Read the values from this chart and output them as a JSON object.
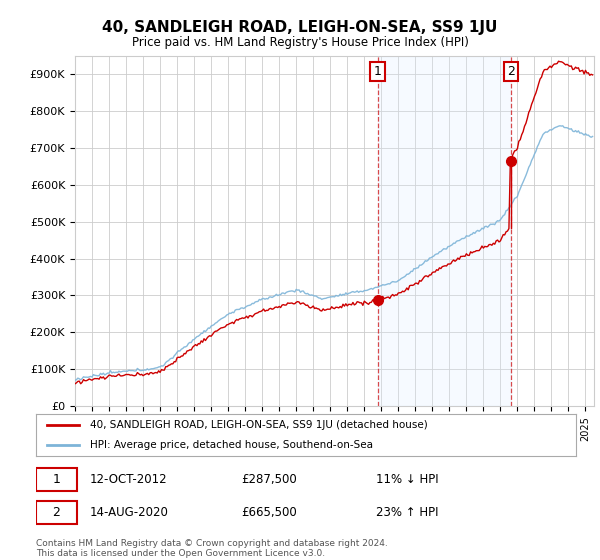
{
  "title": "40, SANDLEIGH ROAD, LEIGH-ON-SEA, SS9 1JU",
  "subtitle": "Price paid vs. HM Land Registry's House Price Index (HPI)",
  "ylabel_ticks": [
    "£0",
    "£100K",
    "£200K",
    "£300K",
    "£400K",
    "£500K",
    "£600K",
    "£700K",
    "£800K",
    "£900K"
  ],
  "ytick_values": [
    0,
    100000,
    200000,
    300000,
    400000,
    500000,
    600000,
    700000,
    800000,
    900000
  ],
  "ylim": [
    0,
    950000
  ],
  "xlim_start": 1995.0,
  "xlim_end": 2025.5,
  "sale1_year": 2012,
  "sale1_month": 10,
  "sale1_date": 2012.78,
  "sale1_price": 287500,
  "sale1_label": "1",
  "sale2_year": 2020,
  "sale2_month": 8,
  "sale2_date": 2020.62,
  "sale2_price": 665500,
  "sale2_label": "2",
  "red_line_color": "#cc0000",
  "blue_line_color": "#7db4d8",
  "shade_color": "#ddeeff",
  "annotation_box_color": "#cc0000",
  "grid_color": "#cccccc",
  "bg_color": "#ffffff",
  "legend_label_red": "40, SANDLEIGH ROAD, LEIGH-ON-SEA, SS9 1JU (detached house)",
  "legend_label_blue": "HPI: Average price, detached house, Southend-on-Sea",
  "note1_label": "1",
  "note1_date": "12-OCT-2012",
  "note1_price": "£287,500",
  "note1_hpi": "11% ↓ HPI",
  "note2_label": "2",
  "note2_date": "14-AUG-2020",
  "note2_price": "£665,500",
  "note2_hpi": "23% ↑ HPI",
  "footnote": "Contains HM Land Registry data © Crown copyright and database right 2024.\nThis data is licensed under the Open Government Licence v3.0."
}
